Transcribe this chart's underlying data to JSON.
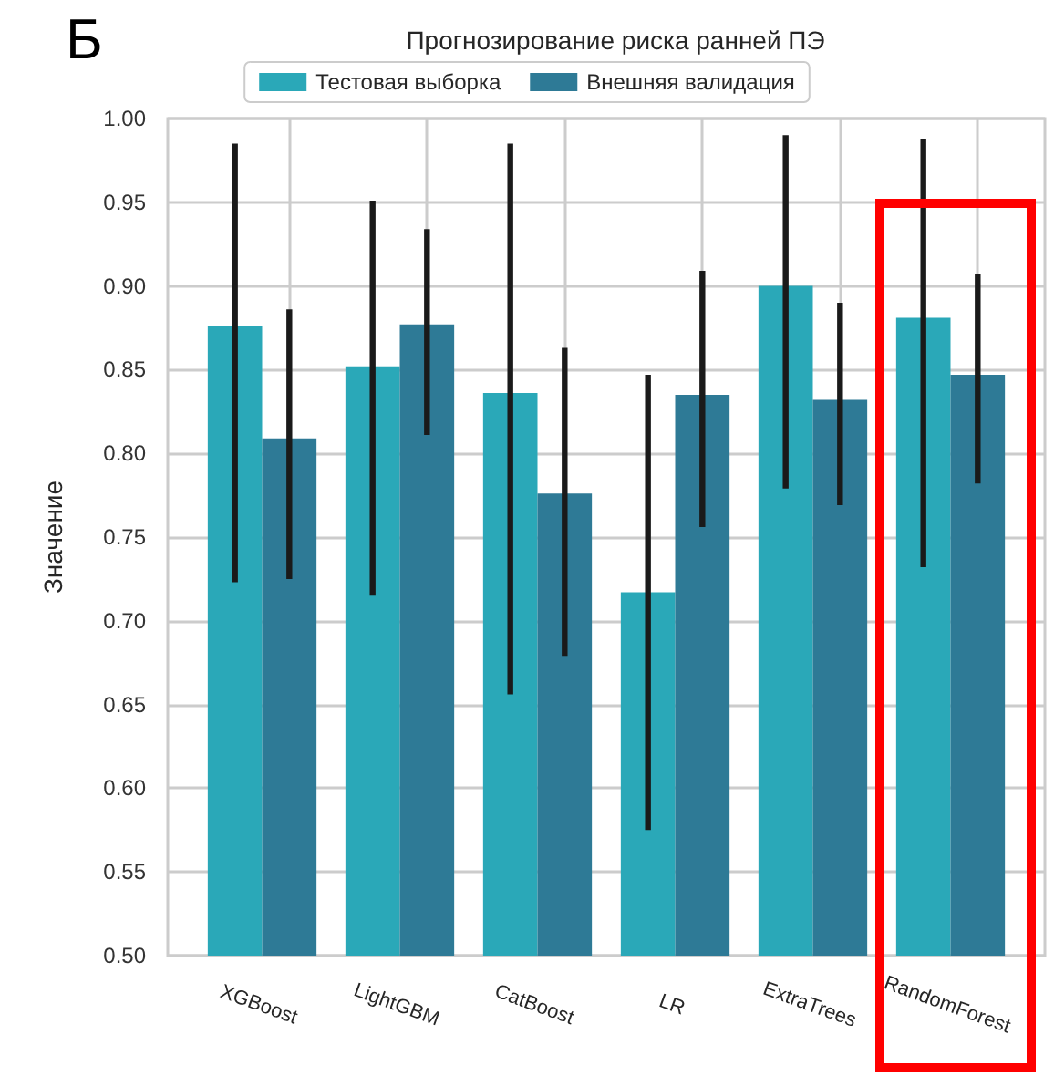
{
  "chart_data": {
    "type": "bar",
    "title": "Прогнозирование риска ранней ПЭ",
    "ylabel": "Значение",
    "annotations": [
      "Б"
    ],
    "categories": [
      "XGBoost",
      "LightGBM",
      "CatBoost",
      "LR",
      "ExtraTrees",
      "RandomForest"
    ],
    "series": [
      {
        "name": "Тестовая выборка",
        "color": "#2aa8b8",
        "values": [
          0.876,
          0.852,
          0.836,
          0.717,
          0.9,
          0.881
        ],
        "errors": [
          [
            0.723,
            0.985
          ],
          [
            0.715,
            0.951
          ],
          [
            0.656,
            0.985
          ],
          [
            0.575,
            0.847
          ],
          [
            0.779,
            0.99
          ],
          [
            0.732,
            0.988
          ]
        ]
      },
      {
        "name": "Внешняя валидация",
        "color": "#2e7a96",
        "values": [
          0.809,
          0.877,
          0.776,
          0.835,
          0.832,
          0.847
        ],
        "errors": [
          [
            0.725,
            0.886
          ],
          [
            0.811,
            0.934
          ],
          [
            0.679,
            0.863
          ],
          [
            0.756,
            0.909
          ],
          [
            0.769,
            0.89
          ],
          [
            0.782,
            0.907
          ]
        ]
      }
    ],
    "ylim": [
      0.5,
      1.0
    ],
    "yticks": [
      {
        "value": 0.5,
        "label": "0.50"
      },
      0.55,
      {
        "value": 0.6,
        "label": "0.60"
      },
      0.65,
      {
        "value": 0.7,
        "label": "0.70"
      },
      0.75,
      {
        "value": 0.8,
        "label": "0.80"
      },
      0.85,
      {
        "value": 0.9,
        "label": "0.90"
      },
      0.95,
      {
        "value": 1.0,
        "label": "1.00"
      }
    ],
    "grid": true,
    "legend": "top"
  }
}
